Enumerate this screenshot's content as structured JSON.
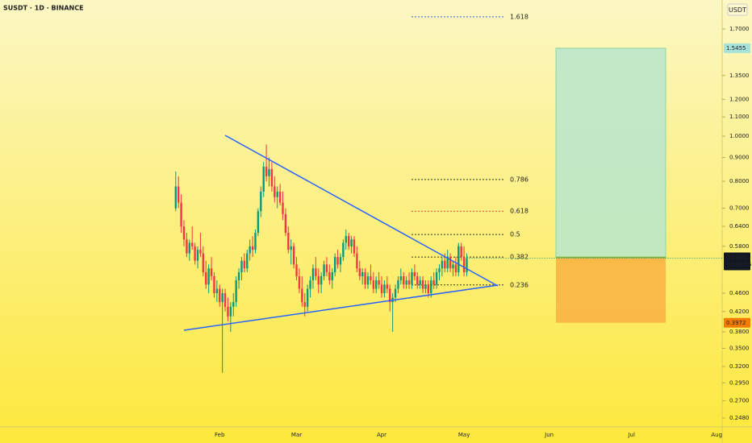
{
  "chart_data": {
    "type": "candlestick",
    "title": "SUSDT · 1D · BINANCE",
    "currency": "USDT",
    "countdown": "17:18:55",
    "log_scale": true,
    "up_color": "#089981",
    "down_color": "#f23645",
    "ylim": [
      0.2373,
      1.962
    ],
    "yticks": [
      {
        "value": 1.7,
        "label": "1.7000"
      },
      {
        "value": 1.35,
        "label": "1.3500"
      },
      {
        "value": 1.2,
        "label": "1.2000"
      },
      {
        "value": 1.1,
        "label": "1.1000"
      },
      {
        "value": 1.0,
        "label": "1.0000"
      },
      {
        "value": 0.9,
        "label": "0.9000"
      },
      {
        "value": 0.8,
        "label": "0.8000"
      },
      {
        "value": 0.7,
        "label": "0.7000"
      },
      {
        "value": 0.64,
        "label": "0.6400"
      },
      {
        "value": 0.58,
        "label": "0.5800"
      },
      {
        "value": 0.46,
        "label": "0.4600"
      },
      {
        "value": 0.42,
        "label": "0.4200"
      },
      {
        "value": 0.38,
        "label": "0.3800"
      },
      {
        "value": 0.35,
        "label": "0.3500"
      },
      {
        "value": 0.32,
        "label": "0.3200"
      },
      {
        "value": 0.295,
        "label": "0.2950"
      },
      {
        "value": 0.27,
        "label": "0.2700"
      },
      {
        "value": 0.248,
        "label": "0.2480"
      }
    ],
    "xlim": [
      -64,
      199
    ],
    "xticks": [
      {
        "value": 16,
        "label": "Feb"
      },
      {
        "value": 44,
        "label": "Mar"
      },
      {
        "value": 75,
        "label": "Apr"
      },
      {
        "value": 105,
        "label": "May"
      },
      {
        "value": 136,
        "label": "Jun"
      },
      {
        "value": 166,
        "label": "Jul"
      },
      {
        "value": 197,
        "label": "Aug"
      }
    ],
    "candles": [
      [
        0.7,
        0.84,
        0.69,
        0.78
      ],
      [
        0.78,
        0.82,
        0.7,
        0.72
      ],
      [
        0.72,
        0.75,
        0.62,
        0.64
      ],
      [
        0.64,
        0.66,
        0.58,
        0.6
      ],
      [
        0.6,
        0.62,
        0.55,
        0.56
      ],
      [
        0.56,
        0.6,
        0.54,
        0.59
      ],
      [
        0.59,
        0.64,
        0.57,
        0.58
      ],
      [
        0.58,
        0.59,
        0.53,
        0.54
      ],
      [
        0.54,
        0.58,
        0.52,
        0.57
      ],
      [
        0.57,
        0.62,
        0.55,
        0.56
      ],
      [
        0.56,
        0.58,
        0.5,
        0.51
      ],
      [
        0.51,
        0.54,
        0.47,
        0.48
      ],
      [
        0.48,
        0.53,
        0.46,
        0.52
      ],
      [
        0.52,
        0.55,
        0.49,
        0.5
      ],
      [
        0.5,
        0.51,
        0.45,
        0.46
      ],
      [
        0.46,
        0.49,
        0.44,
        0.47
      ],
      [
        0.47,
        0.48,
        0.43,
        0.44
      ],
      [
        0.44,
        0.47,
        0.31,
        0.46
      ],
      [
        0.46,
        0.47,
        0.42,
        0.43
      ],
      [
        0.43,
        0.45,
        0.4,
        0.41
      ],
      [
        0.41,
        0.44,
        0.38,
        0.43
      ],
      [
        0.43,
        0.46,
        0.41,
        0.44
      ],
      [
        0.44,
        0.5,
        0.43,
        0.49
      ],
      [
        0.49,
        0.52,
        0.47,
        0.51
      ],
      [
        0.51,
        0.55,
        0.49,
        0.54
      ],
      [
        0.54,
        0.56,
        0.51,
        0.52
      ],
      [
        0.52,
        0.57,
        0.51,
        0.56
      ],
      [
        0.56,
        0.6,
        0.54,
        0.58
      ],
      [
        0.58,
        0.61,
        0.55,
        0.57
      ],
      [
        0.57,
        0.63,
        0.56,
        0.62
      ],
      [
        0.62,
        0.7,
        0.61,
        0.69
      ],
      [
        0.69,
        0.78,
        0.67,
        0.76
      ],
      [
        0.76,
        0.88,
        0.74,
        0.86
      ],
      [
        0.86,
        0.96,
        0.8,
        0.82
      ],
      [
        0.82,
        0.9,
        0.78,
        0.85
      ],
      [
        0.85,
        0.88,
        0.76,
        0.78
      ],
      [
        0.78,
        0.82,
        0.72,
        0.74
      ],
      [
        0.74,
        0.78,
        0.7,
        0.76
      ],
      [
        0.76,
        0.79,
        0.71,
        0.72
      ],
      [
        0.72,
        0.76,
        0.66,
        0.68
      ],
      [
        0.68,
        0.7,
        0.61,
        0.62
      ],
      [
        0.62,
        0.64,
        0.56,
        0.57
      ],
      [
        0.57,
        0.6,
        0.53,
        0.58
      ],
      [
        0.58,
        0.59,
        0.52,
        0.53
      ],
      [
        0.53,
        0.55,
        0.49,
        0.5
      ],
      [
        0.5,
        0.52,
        0.46,
        0.47
      ],
      [
        0.47,
        0.5,
        0.43,
        0.44
      ],
      [
        0.44,
        0.46,
        0.41,
        0.43
      ],
      [
        0.43,
        0.48,
        0.42,
        0.47
      ],
      [
        0.47,
        0.5,
        0.45,
        0.49
      ],
      [
        0.49,
        0.53,
        0.47,
        0.52
      ],
      [
        0.52,
        0.55,
        0.49,
        0.5
      ],
      [
        0.5,
        0.52,
        0.46,
        0.48
      ],
      [
        0.48,
        0.51,
        0.46,
        0.5
      ],
      [
        0.5,
        0.54,
        0.49,
        0.53
      ],
      [
        0.53,
        0.55,
        0.5,
        0.51
      ],
      [
        0.51,
        0.53,
        0.48,
        0.49
      ],
      [
        0.49,
        0.52,
        0.47,
        0.51
      ],
      [
        0.51,
        0.56,
        0.5,
        0.55
      ],
      [
        0.55,
        0.57,
        0.52,
        0.53
      ],
      [
        0.53,
        0.56,
        0.51,
        0.55
      ],
      [
        0.55,
        0.6,
        0.54,
        0.59
      ],
      [
        0.59,
        0.63,
        0.57,
        0.61
      ],
      [
        0.61,
        0.62,
        0.57,
        0.58
      ],
      [
        0.58,
        0.61,
        0.56,
        0.6
      ],
      [
        0.6,
        0.61,
        0.55,
        0.56
      ],
      [
        0.56,
        0.58,
        0.51,
        0.52
      ],
      [
        0.52,
        0.54,
        0.49,
        0.5
      ],
      [
        0.5,
        0.52,
        0.48,
        0.51
      ],
      [
        0.51,
        0.52,
        0.47,
        0.48
      ],
      [
        0.48,
        0.51,
        0.47,
        0.5
      ],
      [
        0.5,
        0.53,
        0.48,
        0.49
      ],
      [
        0.49,
        0.51,
        0.46,
        0.47
      ],
      [
        0.47,
        0.5,
        0.46,
        0.49
      ],
      [
        0.49,
        0.51,
        0.47,
        0.48
      ],
      [
        0.48,
        0.5,
        0.45,
        0.46
      ],
      [
        0.46,
        0.49,
        0.45,
        0.48
      ],
      [
        0.48,
        0.5,
        0.46,
        0.47
      ],
      [
        0.47,
        0.48,
        0.42,
        0.44
      ],
      [
        0.44,
        0.46,
        0.38,
        0.45
      ],
      [
        0.45,
        0.48,
        0.44,
        0.47
      ],
      [
        0.47,
        0.5,
        0.46,
        0.49
      ],
      [
        0.49,
        0.52,
        0.48,
        0.5
      ],
      [
        0.5,
        0.51,
        0.47,
        0.48
      ],
      [
        0.48,
        0.5,
        0.47,
        0.49
      ],
      [
        0.49,
        0.51,
        0.47,
        0.48
      ],
      [
        0.48,
        0.52,
        0.47,
        0.51
      ],
      [
        0.51,
        0.53,
        0.49,
        0.5
      ],
      [
        0.5,
        0.51,
        0.47,
        0.48
      ],
      [
        0.48,
        0.5,
        0.47,
        0.49
      ],
      [
        0.49,
        0.5,
        0.46,
        0.47
      ],
      [
        0.47,
        0.49,
        0.46,
        0.48
      ],
      [
        0.48,
        0.49,
        0.45,
        0.46
      ],
      [
        0.46,
        0.5,
        0.45,
        0.49
      ],
      [
        0.49,
        0.51,
        0.47,
        0.48
      ],
      [
        0.48,
        0.52,
        0.47,
        0.51
      ],
      [
        0.51,
        0.53,
        0.49,
        0.52
      ],
      [
        0.52,
        0.55,
        0.5,
        0.54
      ],
      [
        0.54,
        0.56,
        0.51,
        0.52
      ],
      [
        0.52,
        0.57,
        0.51,
        0.55
      ],
      [
        0.55,
        0.56,
        0.51,
        0.52
      ],
      [
        0.52,
        0.54,
        0.5,
        0.53
      ],
      [
        0.53,
        0.55,
        0.5,
        0.51
      ],
      [
        0.51,
        0.59,
        0.5,
        0.58
      ],
      [
        0.58,
        0.59,
        0.54,
        0.55
      ],
      [
        0.55,
        0.58,
        0.5,
        0.51
      ],
      [
        0.51,
        0.56,
        0.5,
        0.5468
      ]
    ],
    "fib_levels": [
      {
        "label": "1.618",
        "price": 1.805,
        "color": "#2962ff"
      },
      {
        "label": "0.786",
        "price": 0.807,
        "color": "#333333"
      },
      {
        "label": "0.618",
        "price": 0.69,
        "color": "#f23645"
      },
      {
        "label": "0.5",
        "price": 0.615,
        "color": "#333333"
      },
      {
        "label": "0.382",
        "price": 0.55,
        "color": "#333333"
      },
      {
        "label": "0.236",
        "price": 0.479,
        "color": "#333333"
      }
    ],
    "position": {
      "target": 1.5455,
      "entry": 0.549,
      "stop": 0.3972,
      "target_color": "#b6e6cc",
      "stop_color": "#f9b444"
    }
  }
}
